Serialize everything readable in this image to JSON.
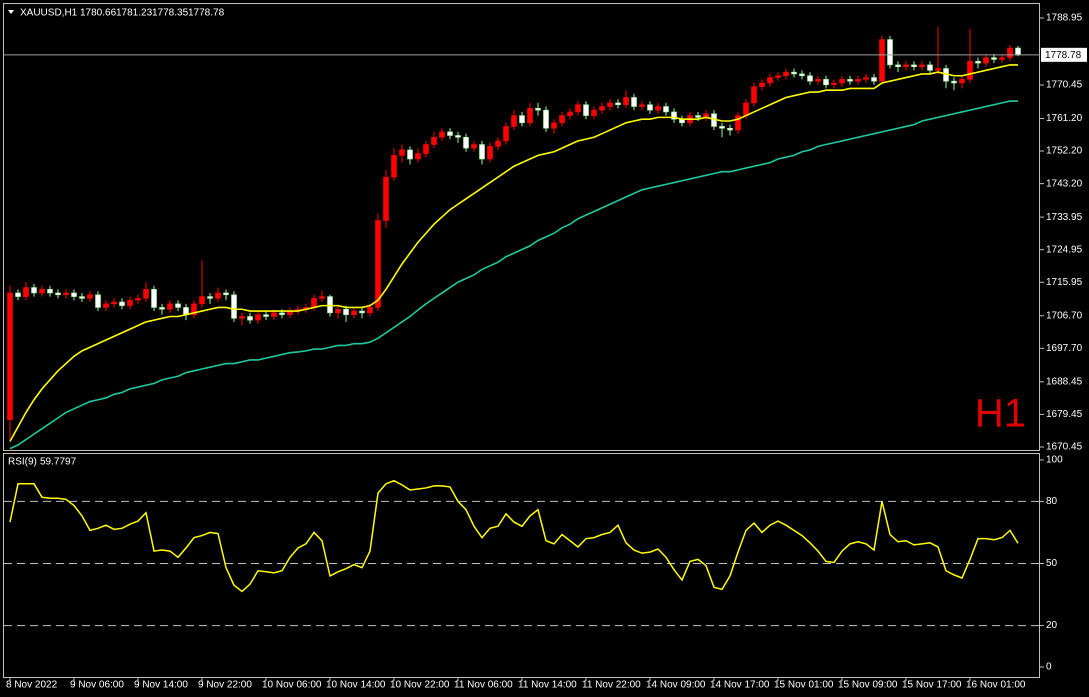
{
  "chart_data": [
    {
      "type": "candlestick",
      "symbol": "XAUUSD,H1",
      "watermark": "H1",
      "bull_color": "#ff0000",
      "bear_color": "#ffffff",
      "bear_wick_color": "#98fb98",
      "categories": [
        "8 Nov 2022",
        null,
        null,
        null,
        null,
        null,
        null,
        null,
        "9 Nov 06:00",
        null,
        null,
        null,
        null,
        null,
        null,
        null,
        "9 Nov 14:00",
        null,
        null,
        null,
        null,
        null,
        null,
        null,
        "9 Nov 22:00",
        null,
        null,
        null,
        null,
        null,
        null,
        null,
        "10 Nov 06:00",
        null,
        null,
        null,
        null,
        null,
        null,
        null,
        "10 Nov 14:00",
        null,
        null,
        null,
        null,
        null,
        null,
        null,
        "10 Nov 22:00",
        null,
        null,
        null,
        null,
        null,
        null,
        null,
        "11 Nov 06:00",
        null,
        null,
        null,
        null,
        null,
        null,
        null,
        "11 Nov 14:00",
        null,
        null,
        null,
        null,
        null,
        null,
        null,
        "11 Nov 22:00",
        null,
        null,
        null,
        null,
        null,
        null,
        null,
        "14 Nov 09:00",
        null,
        null,
        null,
        null,
        null,
        null,
        null,
        "14 Nov 17:00",
        null,
        null,
        null,
        null,
        null,
        null,
        null,
        "15 Nov 01:00",
        null,
        null,
        null,
        null,
        null,
        null,
        null,
        "15 Nov 09:00",
        null,
        null,
        null,
        null,
        null,
        null,
        null,
        "15 Nov 17:00",
        null,
        null,
        null,
        null,
        null,
        null,
        null,
        "16 Nov 01:00",
        null,
        null,
        null,
        null,
        null,
        null
      ],
      "open": [
        1678,
        1713,
        1712,
        1714.5,
        1713,
        1714,
        1713,
        1712.5,
        1713,
        1712,
        1711.5,
        1712.5,
        1709,
        1710,
        1710.5,
        1709.5,
        1711,
        1711.5,
        1714,
        1709,
        1708.5,
        1710,
        1709,
        1707,
        1710,
        1712,
        1711.5,
        1713,
        1712.5,
        1706,
        1706.5,
        1705.5,
        1707,
        1706.5,
        1707.5,
        1707,
        1708,
        1708.5,
        1709,
        1711.5,
        1712,
        1707.5,
        1708.5,
        1707,
        1708,
        1707.5,
        1709,
        1733,
        1745,
        1751,
        1752.5,
        1750,
        1751.5,
        1754,
        1756,
        1757.5,
        1756.5,
        1756,
        1753,
        1754,
        1750,
        1753.5,
        1755,
        1759,
        1762,
        1760,
        1764,
        1763.5,
        1758.5,
        1760,
        1762,
        1763,
        1765,
        1762,
        1763.5,
        1764.5,
        1765.5,
        1765,
        1767,
        1764.5,
        1765,
        1763.5,
        1764.5,
        1763,
        1761,
        1760,
        1762,
        1761.5,
        1762.5,
        1759,
        1758.5,
        1758,
        1762,
        1765.5,
        1770,
        1771,
        1772.5,
        1773,
        1774,
        1773.5,
        1773,
        1771.5,
        1772,
        1770.5,
        1771,
        1772,
        1771.5,
        1772,
        1772.5,
        1771.5,
        1783,
        1776,
        1775.5,
        1776,
        1775.5,
        1776,
        1774.5,
        1775,
        1771.5,
        1771,
        1772,
        1777,
        1776.5,
        1778,
        1777.5,
        1778,
        1780.66
      ],
      "high": [
        1715,
        1714,
        1716,
        1715.5,
        1715,
        1715,
        1714,
        1714,
        1714,
        1713,
        1713.5,
        1713.5,
        1711,
        1711.5,
        1711.5,
        1712,
        1712.5,
        1716,
        1715,
        1710,
        1711,
        1711,
        1710,
        1711,
        1722,
        1713,
        1714.5,
        1714,
        1713.5,
        1707.5,
        1707.5,
        1708,
        1708,
        1708.5,
        1708.5,
        1709,
        1709.5,
        1710,
        1712.5,
        1713.5,
        1712.5,
        1709.5,
        1709.5,
        1709,
        1709,
        1710,
        1735,
        1747,
        1753,
        1754,
        1753.5,
        1753,
        1755,
        1757.5,
        1758.5,
        1758.5,
        1757.5,
        1757,
        1755,
        1755,
        1754.5,
        1756,
        1760,
        1763.5,
        1763,
        1765.5,
        1765.5,
        1764.5,
        1761,
        1763,
        1764,
        1766,
        1766,
        1764.5,
        1765.5,
        1766.5,
        1766.5,
        1769,
        1768,
        1766,
        1766,
        1765.5,
        1765.5,
        1764,
        1762,
        1763,
        1763,
        1763.5,
        1763.5,
        1760,
        1759.5,
        1763,
        1766.5,
        1771,
        1772,
        1773.5,
        1774,
        1775,
        1775,
        1774.5,
        1774,
        1773,
        1773,
        1772,
        1773,
        1773,
        1773,
        1773.5,
        1773.5,
        1784,
        1784,
        1777,
        1777,
        1777,
        1777,
        1777,
        1786.5,
        1776,
        1772.5,
        1773,
        1786,
        1778,
        1779,
        1779,
        1779,
        1781.5,
        1781.23
      ],
      "low": [
        1672,
        1711,
        1711,
        1712,
        1712,
        1712,
        1711.5,
        1711.5,
        1711,
        1710.5,
        1710.5,
        1708,
        1708,
        1709,
        1708.5,
        1708.5,
        1710,
        1710.5,
        1708,
        1707,
        1707.5,
        1708,
        1705.5,
        1706,
        1709,
        1710,
        1710.5,
        1711,
        1705,
        1704,
        1704.5,
        1704.5,
        1705.5,
        1705.5,
        1706,
        1706,
        1707,
        1707.5,
        1708,
        1710.5,
        1706.5,
        1706,
        1705,
        1706,
        1706,
        1706.5,
        1708,
        1731,
        1744,
        1749,
        1748.5,
        1749,
        1750.5,
        1753,
        1755,
        1755.5,
        1754.5,
        1752,
        1752,
        1748.5,
        1749,
        1752.5,
        1754,
        1758,
        1759,
        1759,
        1762,
        1757.5,
        1757,
        1759,
        1761,
        1762,
        1761,
        1761,
        1762.5,
        1763.5,
        1764,
        1764,
        1763.5,
        1763.5,
        1762.5,
        1762.5,
        1762,
        1760,
        1759,
        1759,
        1760.5,
        1760.5,
        1758,
        1756,
        1756.5,
        1757,
        1761,
        1764.5,
        1769,
        1770,
        1771.5,
        1772,
        1772.5,
        1772,
        1770.5,
        1770.5,
        1769.5,
        1769.5,
        1770,
        1770.5,
        1770.5,
        1771,
        1770.5,
        1771,
        1775,
        1774,
        1774.5,
        1774.5,
        1774.5,
        1773.5,
        1773.5,
        1769.5,
        1769,
        1769.5,
        1771,
        1775,
        1775.5,
        1776.5,
        1776.5,
        1777,
        1778.35
      ],
      "close": [
        1713,
        1712,
        1714.5,
        1713,
        1714,
        1713,
        1712.5,
        1713,
        1712,
        1711.5,
        1712.5,
        1709,
        1710,
        1710.5,
        1709.5,
        1711,
        1711.5,
        1714,
        1709,
        1708.5,
        1710,
        1709,
        1707,
        1710,
        1712,
        1711.5,
        1713,
        1712.5,
        1706,
        1706.5,
        1705.5,
        1707,
        1706.5,
        1707.5,
        1707,
        1708,
        1708.5,
        1709,
        1711.5,
        1712,
        1707.5,
        1708.5,
        1707,
        1708,
        1707.5,
        1709,
        1733,
        1745,
        1751,
        1752.5,
        1750,
        1751.5,
        1754,
        1756,
        1757.5,
        1756.5,
        1756,
        1753,
        1754,
        1750,
        1753.5,
        1755,
        1759,
        1762,
        1760,
        1764,
        1763.5,
        1758.5,
        1760,
        1762,
        1763,
        1765,
        1762,
        1763.5,
        1764.5,
        1765.5,
        1765,
        1767,
        1764.5,
        1765,
        1763.5,
        1764.5,
        1763,
        1761,
        1760,
        1762,
        1761.5,
        1762.5,
        1759,
        1758.5,
        1758,
        1762,
        1765.5,
        1770,
        1771,
        1772.5,
        1773,
        1774,
        1773.5,
        1773,
        1771.5,
        1772,
        1770.5,
        1771,
        1772,
        1771.5,
        1772,
        1772.5,
        1771.5,
        1783,
        1776,
        1775.5,
        1776,
        1775.5,
        1776,
        1774.5,
        1775,
        1771.5,
        1771,
        1772,
        1777,
        1776.5,
        1778,
        1777.5,
        1778,
        1780.66,
        1778.78
      ],
      "series": [
        {
          "color": "#ffff00",
          "values": [
            1672,
            1676,
            1680,
            1683.5,
            1686.5,
            1689,
            1691.5,
            1693.5,
            1695.5,
            1697,
            1698,
            1699,
            1700,
            1701,
            1702,
            1703,
            1704,
            1705,
            1705.5,
            1706,
            1706.5,
            1706.5,
            1707,
            1707.5,
            1708,
            1708.5,
            1709,
            1709,
            1708.5,
            1708.5,
            1708,
            1708,
            1708,
            1708,
            1708,
            1708,
            1708,
            1708.5,
            1709,
            1709.5,
            1709.5,
            1709.5,
            1709,
            1709,
            1709,
            1709.5,
            1711,
            1714,
            1717.5,
            1721,
            1724,
            1727,
            1729.5,
            1732,
            1734,
            1736,
            1737.5,
            1739,
            1740.5,
            1742,
            1743.5,
            1745,
            1746.5,
            1748,
            1749,
            1750,
            1751,
            1751.5,
            1752,
            1753,
            1754,
            1755,
            1755.5,
            1756,
            1757,
            1758,
            1759,
            1760,
            1760.5,
            1761,
            1761,
            1761.5,
            1761.5,
            1761.5,
            1761,
            1761,
            1761,
            1761.5,
            1761,
            1760.5,
            1760.5,
            1761,
            1762,
            1763,
            1764,
            1765,
            1766,
            1767,
            1767.5,
            1768,
            1768.5,
            1768.5,
            1769,
            1769,
            1769,
            1769.5,
            1769.5,
            1769.5,
            1769.5,
            1771,
            1771.5,
            1772,
            1772.5,
            1773,
            1773.5,
            1773.5,
            1774,
            1773.5,
            1773,
            1773,
            1773.5,
            1774,
            1774.5,
            1775,
            1775.5,
            1776,
            1776
          ]
        },
        {
          "color": "#20c8a0",
          "values": [
            1670,
            1671,
            1672.5,
            1674,
            1675.5,
            1677,
            1678.5,
            1680,
            1681,
            1682,
            1683,
            1683.5,
            1684,
            1685,
            1685.5,
            1686.5,
            1687,
            1687.5,
            1688,
            1689,
            1689.5,
            1690,
            1691,
            1691.5,
            1692,
            1692.5,
            1693,
            1693.5,
            1693.5,
            1694,
            1694.5,
            1694.5,
            1695,
            1695.5,
            1696,
            1696.5,
            1696.7,
            1697,
            1697.5,
            1697.5,
            1698,
            1698.5,
            1698.5,
            1699,
            1699,
            1699.4,
            1700.5,
            1702,
            1703.5,
            1705,
            1706.5,
            1708.3,
            1710,
            1711.5,
            1713,
            1714.5,
            1716,
            1717,
            1718,
            1719.5,
            1720.5,
            1721.5,
            1723,
            1724,
            1725,
            1726,
            1727.5,
            1728.5,
            1729.5,
            1731,
            1732,
            1733.5,
            1734.5,
            1735.5,
            1736.5,
            1737.5,
            1738.5,
            1739.5,
            1740.5,
            1741.5,
            1742,
            1742.5,
            1743,
            1743.5,
            1744,
            1744.5,
            1745,
            1745.5,
            1746,
            1746.5,
            1746.5,
            1747,
            1747.5,
            1748,
            1748.5,
            1749,
            1750,
            1750.5,
            1751,
            1752,
            1752.5,
            1753.5,
            1754,
            1754.5,
            1755,
            1755.5,
            1756,
            1756.5,
            1757,
            1757.5,
            1758,
            1758.5,
            1759,
            1759.5,
            1760.5,
            1761,
            1761.5,
            1762,
            1762.5,
            1763,
            1763.5,
            1764,
            1764.5,
            1765,
            1765.5,
            1766,
            1766
          ]
        }
      ],
      "ylim": [
        1669.62,
        1792.82
      ],
      "yticks": [
        1788.95,
        1770.45,
        {
          "value": 1761.2,
          "label": "1761.20"
        },
        {
          "value": 1752.2,
          "label": "1752.20"
        },
        {
          "value": 1743.2,
          "label": "1743.20"
        },
        1733.95,
        1724.95,
        1715.95,
        {
          "value": 1706.7,
          "label": "1706.70"
        },
        {
          "value": 1697.7,
          "label": "1697.70"
        },
        1688.45,
        1679.45,
        1670.45
      ]
    },
    {
      "type": "line",
      "title": "RSI(9)",
      "series": [
        {
          "color": "#ffff00",
          "values": [
            70,
            88.5,
            88.5,
            88.5,
            82,
            81.5,
            81.5,
            81,
            78,
            73,
            66,
            67,
            68.5,
            66.5,
            67,
            69,
            70.5,
            74.5,
            56,
            56.5,
            56,
            53,
            57.5,
            62.5,
            63.5,
            65,
            64.5,
            48,
            39.5,
            36.5,
            40,
            46.5,
            46,
            45.5,
            46.5,
            53,
            57.5,
            59.5,
            65,
            61,
            44,
            46,
            47.5,
            49.5,
            48,
            56,
            84,
            88.5,
            90,
            88,
            85.5,
            86,
            86.5,
            87.5,
            87.5,
            87,
            80,
            76,
            68,
            62.5,
            67,
            68,
            74,
            70,
            68,
            73,
            76,
            61,
            59.5,
            64,
            61,
            58,
            62,
            62.5,
            64,
            65,
            68.5,
            60,
            56.5,
            55,
            55.5,
            57,
            53,
            47,
            42,
            51,
            52,
            49,
            38.5,
            37.5,
            44,
            55.5,
            66,
            69.5,
            65,
            68.5,
            70.5,
            68.5,
            66,
            63.5,
            60,
            56,
            51,
            50.5,
            56,
            59.5,
            60.5,
            59.5,
            56.5,
            80,
            64,
            60.5,
            61,
            59,
            59.5,
            60,
            58,
            46.5,
            44.5,
            43,
            52,
            62,
            62,
            61.5,
            62.5,
            66,
            59.7797
          ]
        }
      ],
      "ylim": [
        0,
        100
      ],
      "yticks": [
        100,
        80,
        50,
        20,
        0
      ]
    }
  ]
}
